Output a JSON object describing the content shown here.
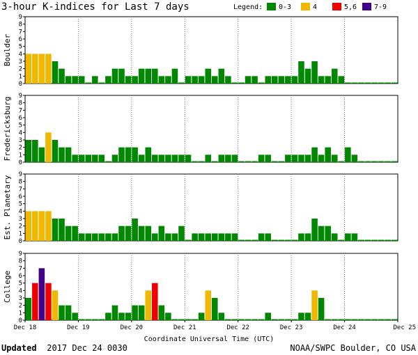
{
  "title": "3-hour K-indices for Last 7 days",
  "legend": {
    "label": "Legend:",
    "items": [
      {
        "label": "0-3",
        "color": "#008800"
      },
      {
        "label": "4",
        "color": "#f0b800"
      },
      {
        "label": "5,6",
        "color": "#ee0000"
      },
      {
        "label": "7-9",
        "color": "#400088"
      }
    ]
  },
  "footer": {
    "updated_label": "Updated",
    "updated_value": "2017 Dec 24 0030",
    "source": "NOAA/SWPC Boulder, CO USA"
  },
  "chart_data": {
    "type": "bar",
    "xlabel": "Coordinate Universal Time (UTC)",
    "x_ticks": [
      "Dec 18",
      "Dec 19",
      "Dec 20",
      "Dec 21",
      "Dec 22",
      "Dec 23",
      "Dec 24",
      "Dec 25"
    ],
    "y_ticks": [
      0,
      1,
      2,
      3,
      4,
      5,
      6,
      7,
      8,
      9
    ],
    "ylim": [
      0,
      9
    ],
    "interval": "3-hour",
    "color_scale": [
      {
        "range": "0-3",
        "color": "#008800"
      },
      {
        "range": "4",
        "color": "#f0b800"
      },
      {
        "range": "5,6",
        "color": "#ee0000"
      },
      {
        "range": "7-9",
        "color": "#400088"
      }
    ],
    "series": [
      {
        "name": "Boulder",
        "values": [
          4,
          4,
          4,
          4,
          3,
          2,
          1,
          1,
          1,
          0,
          1,
          0,
          1,
          2,
          2,
          1,
          1,
          2,
          2,
          2,
          1,
          1,
          2,
          0,
          1,
          1,
          1,
          2,
          1,
          2,
          1,
          0,
          0,
          1,
          1,
          0,
          1,
          1,
          1,
          1,
          1,
          3,
          2,
          3,
          1,
          1,
          2,
          1,
          0,
          0,
          0,
          0,
          0,
          0,
          0,
          0
        ]
      },
      {
        "name": "Fredericksburg",
        "values": [
          3,
          3,
          2,
          4,
          3,
          2,
          2,
          1,
          1,
          1,
          1,
          1,
          0,
          1,
          2,
          2,
          2,
          1,
          2,
          1,
          1,
          1,
          1,
          1,
          1,
          0,
          0,
          1,
          0,
          1,
          1,
          1,
          0,
          0,
          0,
          1,
          1,
          0,
          0,
          1,
          1,
          1,
          1,
          2,
          1,
          2,
          1,
          0,
          2,
          1,
          0,
          0,
          0,
          0,
          0,
          0
        ]
      },
      {
        "name": "Est. Planetary",
        "values": [
          4,
          4,
          4,
          4,
          3,
          3,
          2,
          2,
          1,
          1,
          1,
          1,
          1,
          1,
          2,
          2,
          3,
          2,
          2,
          1,
          2,
          1,
          1,
          2,
          0,
          1,
          1,
          1,
          1,
          1,
          1,
          1,
          0,
          0,
          0,
          1,
          1,
          0,
          0,
          0,
          0,
          1,
          1,
          3,
          2,
          2,
          1,
          0,
          1,
          1,
          0,
          0,
          0,
          0,
          0,
          0
        ]
      },
      {
        "name": "College",
        "values": [
          3,
          5,
          7,
          5,
          4,
          2,
          2,
          1,
          0,
          0,
          0,
          0,
          1,
          2,
          1,
          1,
          2,
          2,
          4,
          5,
          2,
          1,
          0,
          0,
          0,
          0,
          1,
          4,
          3,
          1,
          0,
          0,
          0,
          0,
          0,
          0,
          1,
          0,
          0,
          0,
          0,
          1,
          1,
          4,
          3,
          0,
          0,
          0,
          0,
          0,
          0,
          0,
          0,
          0,
          0,
          0
        ]
      }
    ]
  }
}
